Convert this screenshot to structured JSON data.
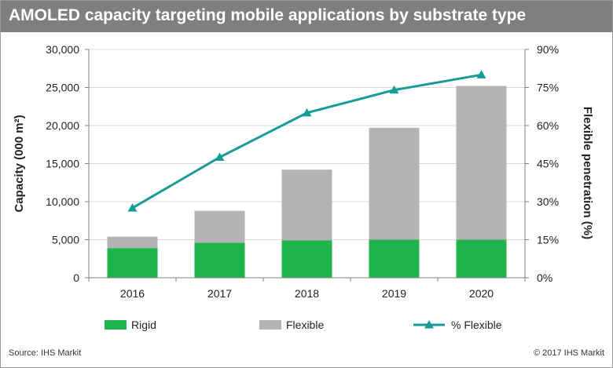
{
  "chart_data": {
    "type": "bar",
    "stacked": true,
    "title": "AMOLED capacity targeting mobile applications by substrate type",
    "ylabel": "Capacity (000 m²)",
    "y2label": "Flexible penetration (%)",
    "categories": [
      "2016",
      "2017",
      "2018",
      "2019",
      "2020"
    ],
    "ylim": [
      0,
      30000
    ],
    "y2lim": [
      0,
      90
    ],
    "yticks": [
      "0",
      "5,000",
      "10,000",
      "15,000",
      "20,000",
      "25,000",
      "30,000"
    ],
    "y2ticks": [
      "0%",
      "15%",
      "30%",
      "45%",
      "60%",
      "75%",
      "90%"
    ],
    "grid": true,
    "series": [
      {
        "name": "Rigid",
        "type": "bar",
        "color": "#1fb34b",
        "values": [
          3900,
          4600,
          4900,
          5000,
          5000
        ]
      },
      {
        "name": "Flexible",
        "type": "bar",
        "color": "#b3b3b5",
        "values": [
          1500,
          4200,
          9300,
          14700,
          20200
        ]
      },
      {
        "name": "% Flexible",
        "type": "line",
        "axis": "right",
        "color": "#169b96",
        "values": [
          27.5,
          47.5,
          65,
          74,
          80
        ]
      }
    ],
    "legend": [
      "Rigid",
      "Flexible",
      "% Flexible"
    ],
    "legend_position": "bottom"
  },
  "footer": {
    "source": "Source: IHS Markit",
    "copyright": "© 2017 IHS Markit"
  }
}
